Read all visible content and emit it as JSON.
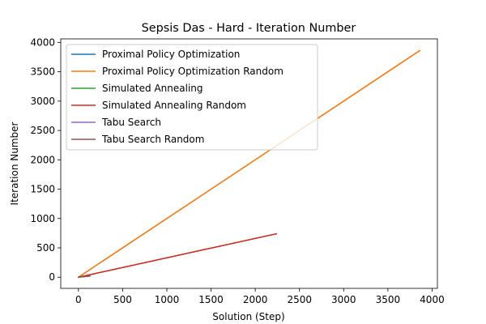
{
  "chart_data": {
    "type": "line",
    "title": "Sepsis Das - Hard - Iteration Number",
    "xlabel": "Solution (Step)",
    "ylabel": "Iteration Number",
    "xlim": [
      -200,
      4060
    ],
    "ylim": [
      -190,
      4060
    ],
    "xticks": [
      0,
      500,
      1000,
      1500,
      2000,
      2500,
      3000,
      3500,
      4000
    ],
    "yticks": [
      0,
      500,
      1000,
      1500,
      2000,
      2500,
      3000,
      3500,
      4000
    ],
    "grid": false,
    "legend_position": "top-left",
    "series": [
      {
        "name": "Proximal Policy Optimization",
        "color": "#1f77b4",
        "x": [
          0,
          3860
        ],
        "y": [
          0,
          3860
        ]
      },
      {
        "name": "Proximal Policy Optimization Random",
        "color": "#ff7f0e",
        "x": [
          0,
          3860
        ],
        "y": [
          0,
          3860
        ]
      },
      {
        "name": "Simulated Annealing",
        "color": "#2ca02c",
        "x": [
          0,
          2240
        ],
        "y": [
          0,
          740
        ]
      },
      {
        "name": "Simulated Annealing Random",
        "color": "#d62728",
        "x": [
          0,
          2240
        ],
        "y": [
          0,
          740
        ]
      },
      {
        "name": "Tabu Search",
        "color": "#9467bd",
        "x": [
          0,
          130
        ],
        "y": [
          0,
          20
        ]
      },
      {
        "name": "Tabu Search Random",
        "color": "#8c564b",
        "x": [
          0,
          130
        ],
        "y": [
          0,
          20
        ]
      }
    ]
  }
}
